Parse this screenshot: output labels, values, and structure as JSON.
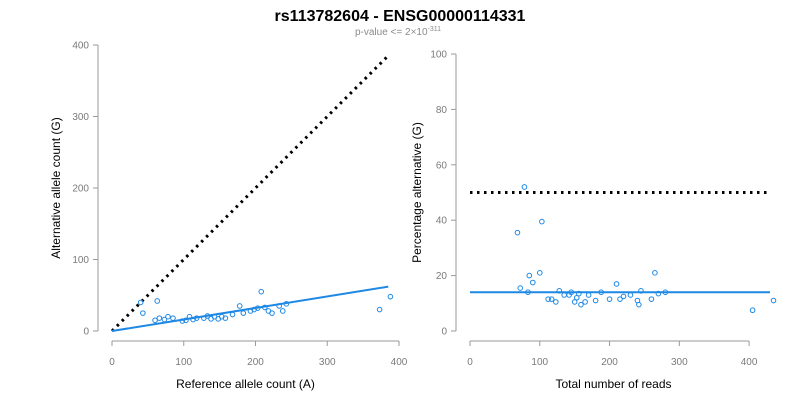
{
  "title": "rs113782604 - ENSG00000114331",
  "subtitle": {
    "text": "p-value <= 2×10",
    "exponent": "-311"
  },
  "colors": {
    "points": "#1e88e5",
    "fit_line": "#1e88e5",
    "reference_line": "#000000",
    "axis": "#9a9a9a"
  },
  "chart_data": [
    {
      "type": "scatter",
      "xlabel": "Reference allele count (A)",
      "ylabel": "Alternative allele count (G)",
      "xlim": [
        0,
        400
      ],
      "ylim": [
        0,
        400
      ],
      "xticks": [
        0,
        100,
        200,
        300,
        400
      ],
      "yticks": [
        0,
        100,
        200,
        300,
        400
      ],
      "grid": false,
      "points": [
        {
          "x": 40,
          "y": 40
        },
        {
          "x": 43,
          "y": 25
        },
        {
          "x": 60,
          "y": 15
        },
        {
          "x": 63,
          "y": 42
        },
        {
          "x": 66,
          "y": 18
        },
        {
          "x": 73,
          "y": 16
        },
        {
          "x": 78,
          "y": 20
        },
        {
          "x": 85,
          "y": 18
        },
        {
          "x": 98,
          "y": 14
        },
        {
          "x": 103,
          "y": 15
        },
        {
          "x": 108,
          "y": 20
        },
        {
          "x": 113,
          "y": 16
        },
        {
          "x": 118,
          "y": 18
        },
        {
          "x": 128,
          "y": 18
        },
        {
          "x": 133,
          "y": 21
        },
        {
          "x": 138,
          "y": 17
        },
        {
          "x": 143,
          "y": 20
        },
        {
          "x": 148,
          "y": 17
        },
        {
          "x": 153,
          "y": 20
        },
        {
          "x": 158,
          "y": 18
        },
        {
          "x": 168,
          "y": 23
        },
        {
          "x": 178,
          "y": 35
        },
        {
          "x": 183,
          "y": 25
        },
        {
          "x": 193,
          "y": 28
        },
        {
          "x": 198,
          "y": 30
        },
        {
          "x": 203,
          "y": 32
        },
        {
          "x": 208,
          "y": 55
        },
        {
          "x": 213,
          "y": 33
        },
        {
          "x": 218,
          "y": 28
        },
        {
          "x": 223,
          "y": 25
        },
        {
          "x": 233,
          "y": 35
        },
        {
          "x": 238,
          "y": 28
        },
        {
          "x": 243,
          "y": 38
        },
        {
          "x": 373,
          "y": 30
        },
        {
          "x": 388,
          "y": 48
        }
      ],
      "reference_line": {
        "x": [
          0,
          385
        ],
        "y": [
          0,
          385
        ],
        "style": "dotted"
      },
      "fit_line": {
        "x": [
          0,
          385
        ],
        "y": [
          0,
          62
        ],
        "style": "solid"
      }
    },
    {
      "type": "scatter",
      "xlabel": "Total number of reads",
      "ylabel": "Percentage alternative (G)",
      "xlim": [
        0,
        440
      ],
      "ylim": [
        0,
        100
      ],
      "xticks": [
        0,
        100,
        200,
        300,
        400
      ],
      "yticks": [
        0,
        20,
        40,
        60,
        80,
        100
      ],
      "grid": false,
      "points": [
        {
          "x": 68,
          "y": 35.5
        },
        {
          "x": 72,
          "y": 15.5
        },
        {
          "x": 78,
          "y": 52
        },
        {
          "x": 83,
          "y": 14
        },
        {
          "x": 85,
          "y": 20
        },
        {
          "x": 90,
          "y": 17.5
        },
        {
          "x": 100,
          "y": 21
        },
        {
          "x": 103,
          "y": 39.5
        },
        {
          "x": 112,
          "y": 11.5
        },
        {
          "x": 117,
          "y": 11.5
        },
        {
          "x": 123,
          "y": 10.5
        },
        {
          "x": 128,
          "y": 14.5
        },
        {
          "x": 135,
          "y": 13
        },
        {
          "x": 142,
          "y": 13
        },
        {
          "x": 145,
          "y": 14
        },
        {
          "x": 150,
          "y": 10.5
        },
        {
          "x": 153,
          "y": 12
        },
        {
          "x": 156,
          "y": 13.5
        },
        {
          "x": 159,
          "y": 9.5
        },
        {
          "x": 165,
          "y": 10.5
        },
        {
          "x": 170,
          "y": 13
        },
        {
          "x": 180,
          "y": 11
        },
        {
          "x": 188,
          "y": 14
        },
        {
          "x": 200,
          "y": 11.5
        },
        {
          "x": 210,
          "y": 17
        },
        {
          "x": 215,
          "y": 11.5
        },
        {
          "x": 220,
          "y": 12.5
        },
        {
          "x": 230,
          "y": 13
        },
        {
          "x": 240,
          "y": 11
        },
        {
          "x": 242,
          "y": 9.5
        },
        {
          "x": 245,
          "y": 14.5
        },
        {
          "x": 260,
          "y": 11.5
        },
        {
          "x": 265,
          "y": 21
        },
        {
          "x": 270,
          "y": 13.5
        },
        {
          "x": 280,
          "y": 14
        },
        {
          "x": 405,
          "y": 7.5
        },
        {
          "x": 435,
          "y": 11
        }
      ],
      "reference_line": {
        "x": [
          0,
          430
        ],
        "y": [
          50,
          50
        ],
        "style": "dotted"
      },
      "fit_line": {
        "x": [
          0,
          430
        ],
        "y": [
          14,
          14
        ],
        "style": "solid"
      }
    }
  ]
}
